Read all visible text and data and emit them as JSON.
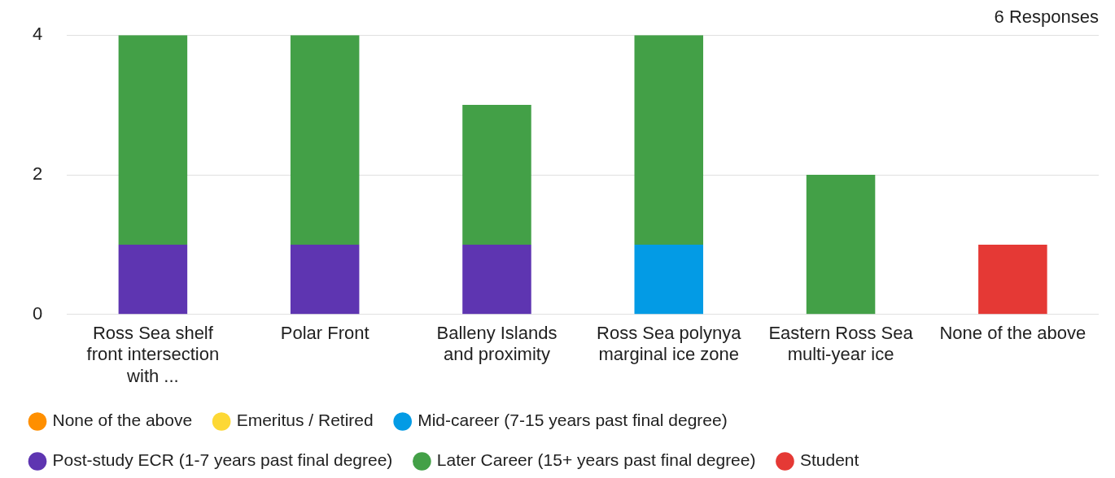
{
  "chart_data": {
    "type": "bar",
    "title": "6 Responses",
    "stacked": true,
    "categories": [
      "Ross Sea shelf front intersection with ...",
      "Polar Front",
      "Balleny Islands and proximity",
      "Ross Sea polynya marginal ice zone",
      "Eastern Ross Sea multi-year ice",
      "None of the above"
    ],
    "series": [
      {
        "name": "None of the above",
        "color": "#ff8f00",
        "values": [
          0,
          0,
          0,
          0,
          0,
          0
        ]
      },
      {
        "name": "Emeritus / Retired",
        "color": "#fdd835",
        "values": [
          0,
          0,
          0,
          0,
          0,
          0
        ]
      },
      {
        "name": "Mid-career (7-15 years past final degree)",
        "color": "#039be5",
        "values": [
          0,
          0,
          0,
          1,
          0,
          0
        ]
      },
      {
        "name": "Post-study ECR (1-7 years past final degree)",
        "color": "#5e35b1",
        "values": [
          1,
          1,
          1,
          0,
          0,
          0
        ]
      },
      {
        "name": "Later Career (15+ years past final degree)",
        "color": "#43a047",
        "values": [
          3,
          3,
          2,
          3,
          2,
          0
        ]
      },
      {
        "name": "Student",
        "color": "#e53935",
        "values": [
          0,
          0,
          0,
          0,
          0,
          1
        ]
      }
    ],
    "ylim": [
      0,
      4
    ],
    "yticks": [
      0,
      2,
      4
    ],
    "grid": "y",
    "legend": "bottom"
  }
}
